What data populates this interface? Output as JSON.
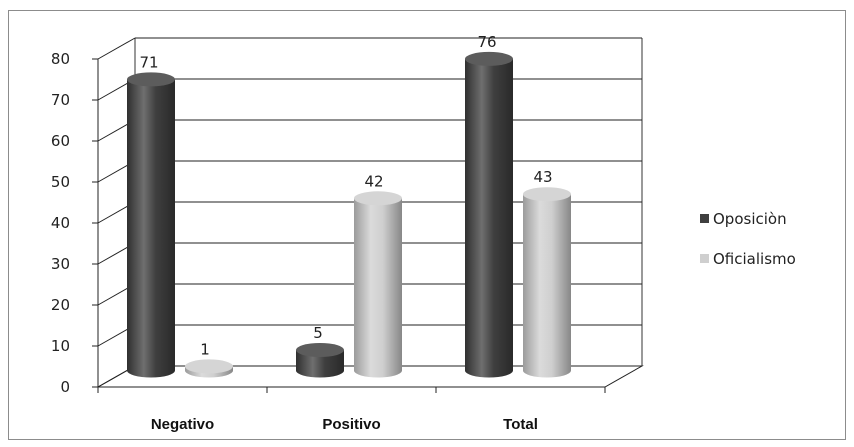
{
  "chart_data": {
    "type": "bar",
    "style": "3d-cylinder",
    "categories": [
      "Negativo",
      "Positivo",
      "Total"
    ],
    "series": [
      {
        "name": "Oposiciòn",
        "values": [
          71,
          5,
          76
        ],
        "color": "#3f3f3f"
      },
      {
        "name": "Oficialismo",
        "values": [
          1,
          42,
          43
        ],
        "color": "#cfcfcf"
      }
    ],
    "ylim": [
      0,
      80
    ],
    "yticks": [
      0,
      10,
      20,
      30,
      40,
      50,
      60,
      70,
      80
    ],
    "grid": true,
    "legend_position": "right",
    "title": "",
    "xlabel": "",
    "ylabel": ""
  }
}
